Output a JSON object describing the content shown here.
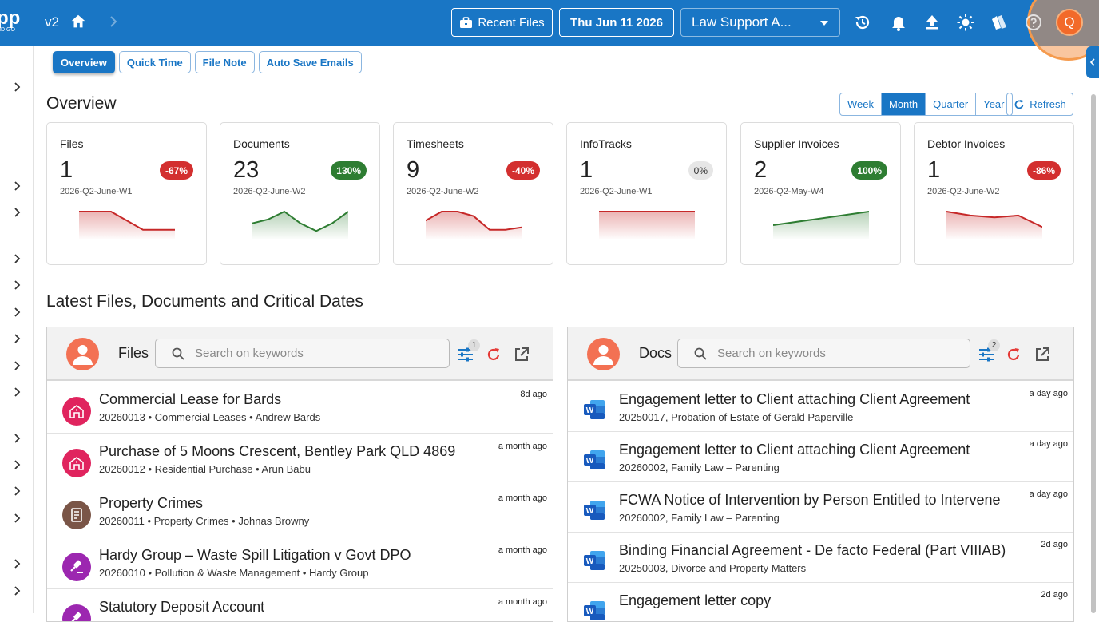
{
  "header": {
    "logo_line1": "pp",
    "logo_line2": "ND GO",
    "version": "v2",
    "recent_files_label": "Recent Files",
    "date_label": "Thu Jun 11 2026",
    "firm_select": "Law Support A...",
    "avatar_initial": "Q"
  },
  "subtabs": [
    "Overview",
    "Quick Time",
    "File Note",
    "Auto Save Emails"
  ],
  "overview": {
    "title": "Overview",
    "periods": [
      "Week",
      "Month",
      "Quarter",
      "Year"
    ],
    "active_period": "Month",
    "refresh_label": "Refresh"
  },
  "cards": [
    {
      "title": "Files",
      "value": "1",
      "change": "-67%",
      "period": "2026-Q2-June-W1",
      "trend": [
        3,
        3,
        1,
        1
      ],
      "color": "#c62828"
    },
    {
      "title": "Documents",
      "value": "23",
      "change": "130%",
      "period": "2026-Q2-June-W2",
      "trend": [
        4,
        5,
        7,
        4,
        2,
        4,
        7
      ],
      "color": "#2e7d32"
    },
    {
      "title": "Timesheets",
      "value": "9",
      "change": "-40%",
      "period": "2026-Q2-June-W2",
      "trend": [
        4,
        6,
        6,
        5,
        2,
        2,
        2.5
      ],
      "color": "#c62828"
    },
    {
      "title": "InfoTracks",
      "value": "1",
      "change": "0%",
      "period": "2026-Q2-June-W1",
      "trend": [
        1,
        1
      ],
      "color": "#c62828"
    },
    {
      "title": "Supplier Invoices",
      "value": "2",
      "change": "100%",
      "period": "2026-Q2-May-W4",
      "trend": [
        1,
        2
      ],
      "color": "#2e7d32"
    },
    {
      "title": "Debtor Invoices",
      "value": "1",
      "change": "-86%",
      "period": "2026-Q2-June-W2",
      "trend": [
        7,
        6,
        5.5,
        6,
        3
      ],
      "color": "#c62828"
    }
  ],
  "latest_title": "Latest Files, Documents and Critical Dates",
  "files_panel": {
    "title": "Files",
    "search_placeholder": "Search on keywords",
    "filter_count": "1",
    "items": [
      {
        "title": "Commercial Lease for Bards",
        "subtitle": "20260013  •  Commercial Leases  •  Andrew Bards",
        "ago": "8d ago",
        "icon": "building-icon",
        "color": "#e0245e"
      },
      {
        "title": "Purchase of 5 Moons Crescent, Bentley Park QLD 4869",
        "subtitle": "20260012  •  Residential Purchase  •  Arun Babu",
        "ago": "a month ago",
        "icon": "building-icon",
        "color": "#e0245e"
      },
      {
        "title": "Property Crimes",
        "subtitle": "20260011  •  Property Crimes  •  Johnas Browny",
        "ago": "a month ago",
        "icon": "document-icon",
        "color": "#7a5547"
      },
      {
        "title": "Hardy Group – Waste Spill Litigation v Govt DPO",
        "subtitle": "20260010  •  Pollution & Waste Management  •  Hardy Group",
        "ago": "a month ago",
        "icon": "gavel-icon",
        "color": "#9c27b0"
      },
      {
        "title": "Statutory Deposit Account",
        "subtitle": "",
        "ago": "a month ago",
        "icon": "gavel-icon",
        "color": "#9c27b0"
      }
    ]
  },
  "docs_panel": {
    "title": "Docs",
    "search_placeholder": "Search on keywords",
    "filter_count": "2",
    "items": [
      {
        "title": "Engagement letter to Client attaching Client Agreement",
        "subtitle": "20250017, Probation of Estate of Gerald Paperville",
        "ago": "a day ago"
      },
      {
        "title": "Engagement letter to Client attaching Client Agreement",
        "subtitle": "20260002, Family Law – Parenting",
        "ago": "a day ago"
      },
      {
        "title": "FCWA Notice of Intervention by Person Entitled to Intervene",
        "subtitle": "20260002, Family Law – Parenting",
        "ago": "a day ago"
      },
      {
        "title": "Binding Financial Agreement - De facto Federal (Part VIIIAB)",
        "subtitle": "20250003, Divorce and Property Matters",
        "ago": "2d ago"
      },
      {
        "title": "Engagement letter copy",
        "subtitle": "",
        "ago": "2d ago"
      }
    ]
  }
}
